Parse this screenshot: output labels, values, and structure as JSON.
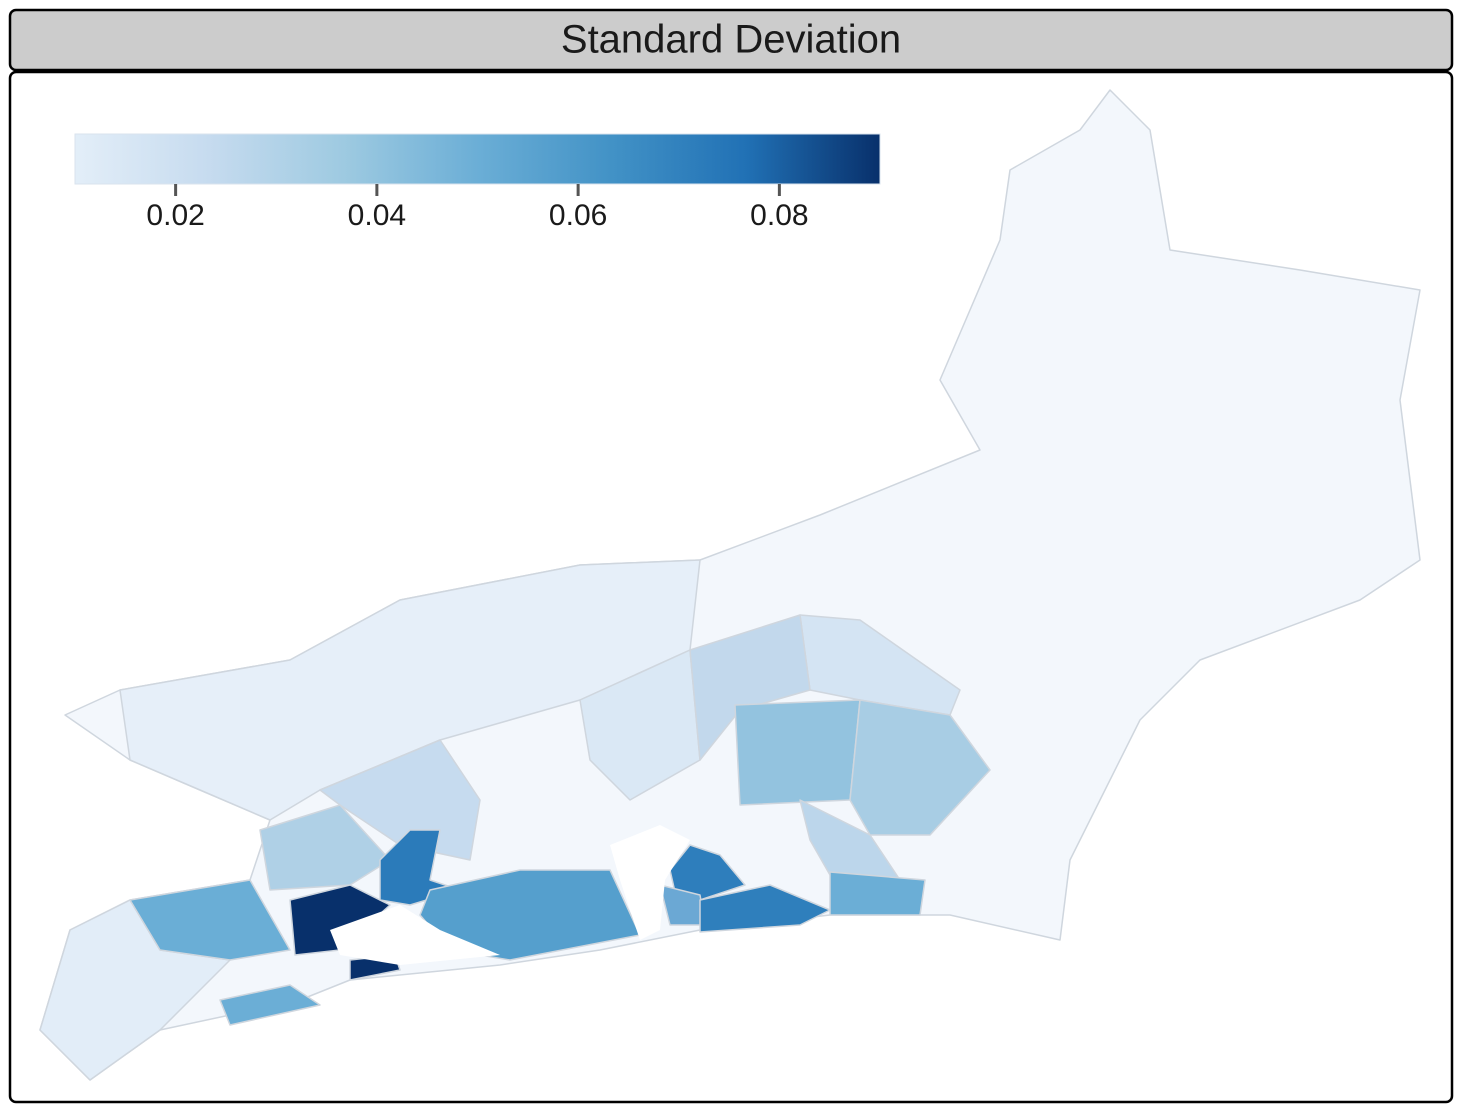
{
  "chart_data": {
    "type": "choropleth",
    "title": "Standard Deviation",
    "colorbar": {
      "lim": [
        0.01,
        0.09
      ],
      "ticks": [
        0.02,
        0.04,
        0.06,
        0.08
      ],
      "colors": [
        "#e3eef8",
        "#c6dbef",
        "#9ecae1",
        "#6baed6",
        "#4292c6",
        "#2171b5",
        "#08306b"
      ]
    }
  }
}
